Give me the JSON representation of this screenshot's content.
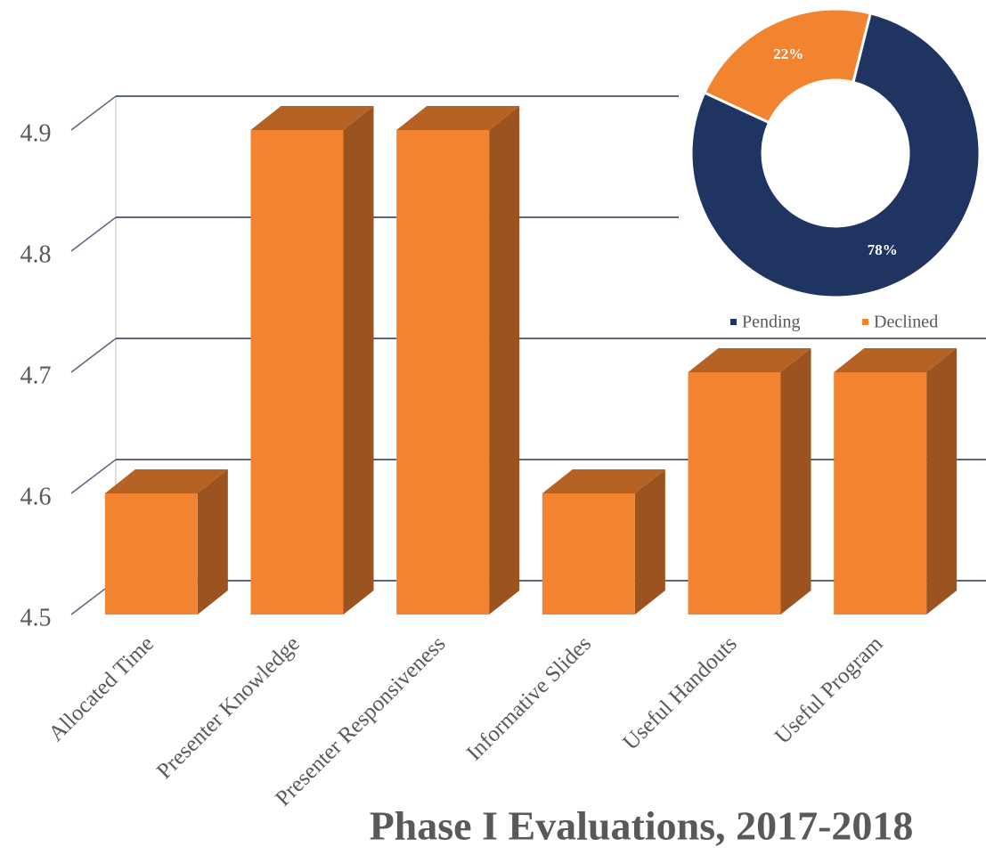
{
  "chart_data": [
    {
      "type": "bar3d",
      "title": "Phase I Evaluations, 2017-2018",
      "categories": [
        "Allocated Time",
        "Presenter Knowledge",
        "Presenter Responsiveness",
        "Informative Slides",
        "Useful Handouts",
        "Useful Program"
      ],
      "values": [
        4.6,
        4.9,
        4.9,
        4.6,
        4.7,
        4.7
      ],
      "color": "#f28331",
      "ylim": [
        4.5,
        4.9
      ],
      "yticks": [
        4.5,
        4.6,
        4.7,
        4.8,
        4.9
      ],
      "grid": true
    },
    {
      "type": "donut",
      "categories": [
        "Pending",
        "Declined"
      ],
      "values": [
        78,
        22
      ],
      "value_labels": [
        "78%",
        "22%"
      ],
      "colors": [
        "#1f3461",
        "#f28331"
      ],
      "legend": "bottom"
    }
  ]
}
